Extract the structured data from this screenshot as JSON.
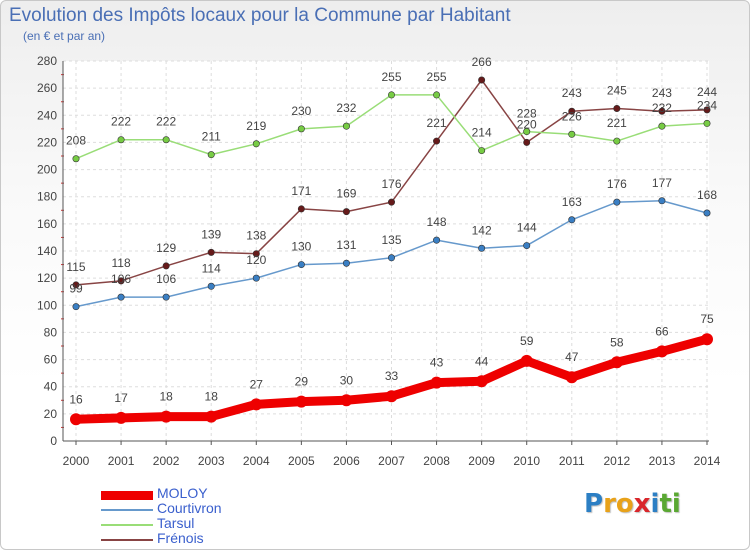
{
  "title": "Evolution des Impôts locaux pour la Commune par Habitant",
  "subtitle": "(en € et par an)",
  "logo": {
    "letters": [
      "P",
      "r",
      "o",
      "x",
      "i",
      "t",
      "i"
    ],
    "colors": [
      "#2c7fc4",
      "#e8a21a",
      "#e8a21a",
      "#d9262b",
      "#2c7fc4",
      "#5aa832",
      "#5aa832"
    ]
  },
  "chart_data": {
    "type": "line",
    "title": "Evolution des Impôts locaux pour la Commune par Habitant",
    "subtitle": "(en € et par an)",
    "xlabel": "",
    "ylabel": "",
    "ylim": [
      0,
      280
    ],
    "yticks": [
      0,
      20,
      40,
      60,
      80,
      100,
      120,
      140,
      160,
      180,
      200,
      220,
      240,
      260,
      280
    ],
    "grid": true,
    "legend_position": "bottom-left",
    "x": [
      "2000",
      "2001",
      "2002",
      "2003",
      "2004",
      "2005",
      "2006",
      "2007",
      "2008",
      "2009",
      "2010",
      "2011",
      "2012",
      "2013",
      "2014"
    ],
    "series": [
      {
        "name": "MOLOY",
        "color": "#ee0000",
        "values": [
          16,
          17,
          18,
          18,
          27,
          29,
          30,
          33,
          43,
          44,
          59,
          47,
          58,
          66,
          75
        ]
      },
      {
        "name": "Courtivron",
        "color": "#6699cc",
        "marker": "#3a7fc4",
        "values": [
          99,
          106,
          106,
          114,
          120,
          130,
          131,
          135,
          148,
          142,
          144,
          163,
          176,
          177,
          168
        ]
      },
      {
        "name": "Tarsul",
        "color": "#99dd77",
        "marker": "#77cc44",
        "values": [
          208,
          222,
          222,
          211,
          219,
          230,
          232,
          255,
          255,
          214,
          228,
          226,
          221,
          232,
          234
        ]
      },
      {
        "name": "Frénois",
        "color": "#884444",
        "marker": "#661a1a",
        "values": [
          115,
          118,
          129,
          139,
          138,
          171,
          169,
          176,
          221,
          266,
          220,
          243,
          245,
          243,
          244
        ]
      }
    ]
  }
}
